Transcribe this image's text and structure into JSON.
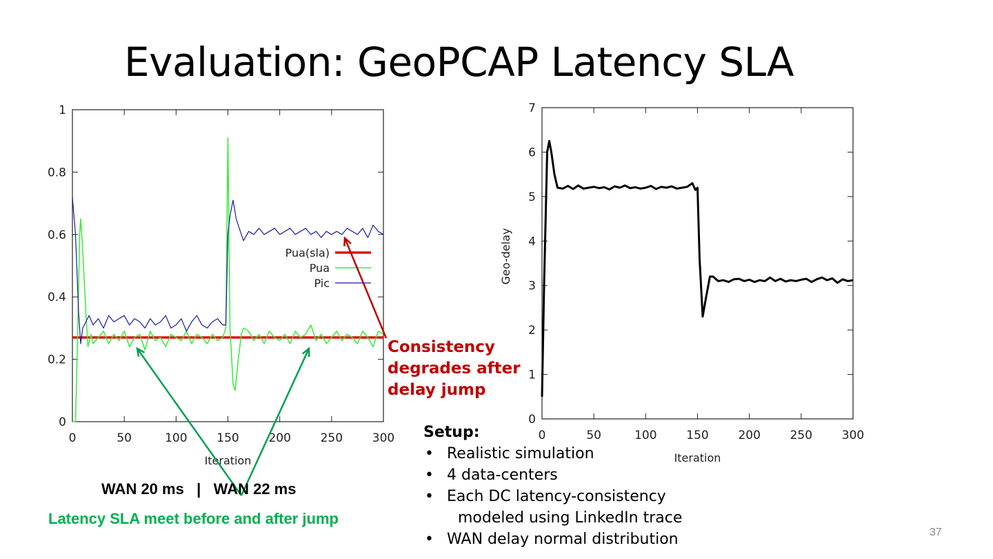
{
  "title": "Evaluation: GeoPCAP Latency SLA",
  "annotations": {
    "red_line1": "Consistency degrades after",
    "red_line2": "delay jump",
    "wan": "WAN 20 ms   |   WAN 22 ms",
    "green": "Latency SLA meet before and after jump"
  },
  "setup": {
    "heading": "Setup:",
    "items": [
      "Realistic simulation",
      "4 data-centers",
      "Each DC latency-consistency",
      "modeled using LinkedIn trace",
      "WAN delay normal distribution"
    ]
  },
  "page_number": "37",
  "colors": {
    "sla": "#e01010",
    "pua": "#33ee33",
    "pic": "#1a1aaa",
    "geo": "#000000",
    "red_text": "#c00000",
    "green_text": "#00b050"
  },
  "chart_data": [
    {
      "type": "line",
      "title": "",
      "xlabel": "Iteration",
      "ylabel": "",
      "xlim": [
        0,
        300
      ],
      "ylim": [
        0,
        1
      ],
      "xticks": [
        "0",
        "50",
        "100",
        "150",
        "200",
        "250",
        "300"
      ],
      "yticks": [
        "0",
        "0.2",
        "0.4",
        "0.6",
        "0.8",
        "1"
      ],
      "legend_position": "right-middle",
      "series": [
        {
          "name": "Pua(sla)",
          "x": [
            0,
            300
          ],
          "y": [
            0.27,
            0.27
          ]
        },
        {
          "name": "Pua",
          "x": [
            0,
            3,
            5,
            7,
            8,
            10,
            13,
            15,
            18,
            20,
            25,
            30,
            35,
            40,
            45,
            50,
            55,
            60,
            65,
            70,
            75,
            80,
            85,
            90,
            95,
            100,
            105,
            110,
            115,
            120,
            125,
            130,
            135,
            140,
            145,
            148,
            150,
            152,
            155,
            157,
            160,
            163,
            165,
            170,
            175,
            180,
            185,
            190,
            195,
            200,
            205,
            210,
            215,
            220,
            225,
            230,
            235,
            240,
            245,
            250,
            255,
            260,
            265,
            270,
            275,
            280,
            285,
            290,
            295,
            300
          ],
          "y": [
            0,
            0,
            0.27,
            0.6,
            0.65,
            0.55,
            0.35,
            0.24,
            0.28,
            0.25,
            0.27,
            0.29,
            0.25,
            0.28,
            0.26,
            0.29,
            0.24,
            0.27,
            0.28,
            0.23,
            0.29,
            0.26,
            0.27,
            0.24,
            0.28,
            0.27,
            0.26,
            0.29,
            0.25,
            0.28,
            0.27,
            0.25,
            0.28,
            0.26,
            0.27,
            0.3,
            0.91,
            0.3,
            0.12,
            0.1,
            0.2,
            0.28,
            0.3,
            0.29,
            0.26,
            0.28,
            0.25,
            0.29,
            0.27,
            0.26,
            0.28,
            0.25,
            0.29,
            0.27,
            0.28,
            0.31,
            0.26,
            0.28,
            0.25,
            0.27,
            0.29,
            0.26,
            0.28,
            0.27,
            0.25,
            0.29,
            0.27,
            0.24,
            0.29,
            0.28
          ]
        },
        {
          "name": "Pic",
          "x": [
            0,
            3,
            6,
            8,
            10,
            13,
            16,
            20,
            25,
            30,
            35,
            40,
            45,
            50,
            55,
            60,
            65,
            70,
            75,
            80,
            85,
            90,
            95,
            100,
            105,
            110,
            115,
            120,
            125,
            130,
            135,
            140,
            145,
            148,
            150,
            152,
            155,
            158,
            160,
            163,
            165,
            170,
            175,
            180,
            185,
            190,
            195,
            200,
            205,
            210,
            215,
            220,
            225,
            230,
            235,
            240,
            245,
            250,
            255,
            260,
            265,
            270,
            275,
            280,
            285,
            290,
            295,
            300
          ],
          "y": [
            0.72,
            0.6,
            0.35,
            0.25,
            0.3,
            0.32,
            0.34,
            0.31,
            0.33,
            0.3,
            0.34,
            0.32,
            0.33,
            0.34,
            0.31,
            0.33,
            0.32,
            0.3,
            0.33,
            0.31,
            0.32,
            0.34,
            0.3,
            0.31,
            0.33,
            0.29,
            0.32,
            0.34,
            0.31,
            0.3,
            0.32,
            0.33,
            0.31,
            0.31,
            0.6,
            0.66,
            0.71,
            0.65,
            0.63,
            0.6,
            0.58,
            0.61,
            0.6,
            0.62,
            0.6,
            0.61,
            0.62,
            0.6,
            0.61,
            0.62,
            0.6,
            0.61,
            0.62,
            0.6,
            0.61,
            0.59,
            0.61,
            0.6,
            0.61,
            0.6,
            0.62,
            0.61,
            0.6,
            0.62,
            0.59,
            0.63,
            0.61,
            0.6
          ]
        }
      ]
    },
    {
      "type": "line",
      "title": "",
      "xlabel": "Iteration",
      "ylabel": "Geo-delay",
      "xlim": [
        0,
        300
      ],
      "ylim": [
        0,
        7
      ],
      "xticks": [
        "0",
        "50",
        "100",
        "150",
        "200",
        "250",
        "300"
      ],
      "yticks": [
        "0",
        "1",
        "2",
        "3",
        "4",
        "5",
        "6",
        "7"
      ],
      "series": [
        {
          "name": "Geo-delay",
          "x": [
            0,
            2,
            5,
            7,
            9,
            12,
            15,
            20,
            25,
            30,
            35,
            40,
            45,
            50,
            55,
            60,
            65,
            70,
            75,
            80,
            85,
            90,
            95,
            100,
            105,
            110,
            115,
            120,
            125,
            130,
            135,
            140,
            145,
            148,
            150,
            152,
            155,
            158,
            162,
            165,
            170,
            175,
            180,
            185,
            190,
            195,
            200,
            205,
            210,
            215,
            220,
            225,
            230,
            235,
            240,
            245,
            250,
            255,
            260,
            265,
            270,
            275,
            280,
            285,
            290,
            295,
            300
          ],
          "y": [
            0.5,
            3.0,
            6.0,
            6.25,
            6.0,
            5.5,
            5.2,
            5.18,
            5.24,
            5.17,
            5.25,
            5.18,
            5.2,
            5.22,
            5.19,
            5.21,
            5.16,
            5.23,
            5.2,
            5.25,
            5.19,
            5.21,
            5.18,
            5.2,
            5.24,
            5.17,
            5.22,
            5.2,
            5.23,
            5.18,
            5.2,
            5.22,
            5.3,
            5.15,
            5.2,
            3.6,
            2.3,
            2.7,
            3.2,
            3.2,
            3.1,
            3.12,
            3.08,
            3.14,
            3.15,
            3.1,
            3.13,
            3.08,
            3.12,
            3.1,
            3.18,
            3.1,
            3.15,
            3.09,
            3.12,
            3.1,
            3.13,
            3.15,
            3.08,
            3.14,
            3.18,
            3.12,
            3.16,
            3.06,
            3.14,
            3.1,
            3.12
          ]
        }
      ]
    }
  ]
}
